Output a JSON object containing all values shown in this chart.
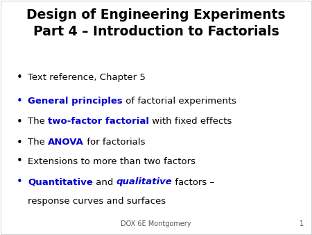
{
  "background_color": "#ffffff",
  "title_line1": "Design of Engineering Experiments",
  "title_line2": "Part 4 – Introduction to Factorials",
  "title_color": "#000000",
  "title_fontsize": 13.5,
  "bullet_fontsize": 9.5,
  "bullet_color": "#000000",
  "highlight_color": "#0000cd",
  "footer_text": "DOX 6E Montgomery",
  "footer_number": "1",
  "footer_fontsize": 7,
  "footer_color": "#555555",
  "bullets": [
    {
      "segments": [
        {
          "text": "Text reference, Chapter 5",
          "color": "#000000",
          "bold": false,
          "italic": false
        }
      ]
    },
    {
      "segments": [
        {
          "text": "General principles",
          "color": "#0000cd",
          "bold": true,
          "italic": false
        },
        {
          "text": " of factorial experiments",
          "color": "#000000",
          "bold": false,
          "italic": false
        }
      ]
    },
    {
      "segments": [
        {
          "text": "The ",
          "color": "#000000",
          "bold": false,
          "italic": false
        },
        {
          "text": "two-factor factorial",
          "color": "#0000cd",
          "bold": true,
          "italic": false
        },
        {
          "text": " with fixed effects",
          "color": "#000000",
          "bold": false,
          "italic": false
        }
      ]
    },
    {
      "segments": [
        {
          "text": "The ",
          "color": "#000000",
          "bold": false,
          "italic": false
        },
        {
          "text": "ANOVA",
          "color": "#0000cd",
          "bold": true,
          "italic": false
        },
        {
          "text": " for factorials",
          "color": "#000000",
          "bold": false,
          "italic": false
        }
      ]
    },
    {
      "segments": [
        {
          "text": "Extensions to more than two factors",
          "color": "#000000",
          "bold": false,
          "italic": false
        }
      ]
    },
    {
      "segments": [
        {
          "text": "Quantitative",
          "color": "#0000cd",
          "bold": true,
          "italic": false
        },
        {
          "text": " and ",
          "color": "#000000",
          "bold": false,
          "italic": false
        },
        {
          "text": "qualitative",
          "color": "#0000cd",
          "bold": true,
          "italic": true
        },
        {
          "text": " factors –",
          "color": "#000000",
          "bold": false,
          "italic": false
        }
      ],
      "continuation": "response curves and surfaces"
    }
  ]
}
